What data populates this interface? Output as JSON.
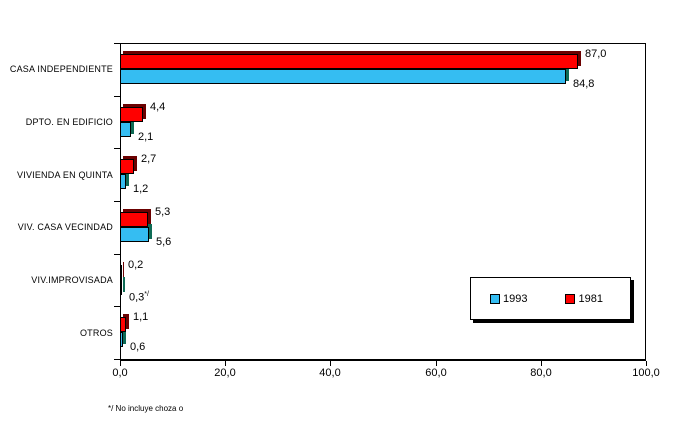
{
  "chart_data": {
    "type": "bar",
    "orientation": "horizontal",
    "title": "",
    "categories": [
      "CASA INDEPENDIENTE",
      "DPTO. EN EDIFICIO",
      "VIVIENDA EN QUINTA",
      "VIV. CASA VECINDAD",
      "VIV.IMPROVISADA",
      "OTROS"
    ],
    "series": [
      {
        "name": "1981",
        "color": "#ff0000",
        "depth_color": "#6b0000",
        "values": [
          87.0,
          4.4,
          2.7,
          5.3,
          0.2,
          1.1
        ],
        "labels": [
          "87,0",
          "4,4",
          "2,7",
          "5,3",
          "0,2",
          "1,1"
        ],
        "label_sups": [
          null,
          null,
          null,
          null,
          null,
          null
        ]
      },
      {
        "name": "1993",
        "color": "#35bdf2",
        "depth_color": "#0e6b55",
        "values": [
          84.8,
          2.1,
          1.2,
          5.6,
          0.3,
          0.6
        ],
        "labels": [
          "84,8",
          "2,1",
          "1,2",
          "5,6",
          "0,3",
          "0,6"
        ],
        "label_sups": [
          null,
          null,
          null,
          null,
          "*/",
          null
        ]
      }
    ],
    "x_axis": {
      "min": 0,
      "max": 100,
      "tick_interval": 20,
      "tick_labels": [
        "0,0",
        "20,0",
        "40,0",
        "60,0",
        "80,0",
        "100,0"
      ]
    },
    "legend": [
      {
        "label": "1993",
        "color": "#35bdf2"
      },
      {
        "label": "1981",
        "color": "#ff0000"
      }
    ],
    "legend_position": "inside-right",
    "grid": false,
    "footnote": "*/ No incluye choza o"
  }
}
